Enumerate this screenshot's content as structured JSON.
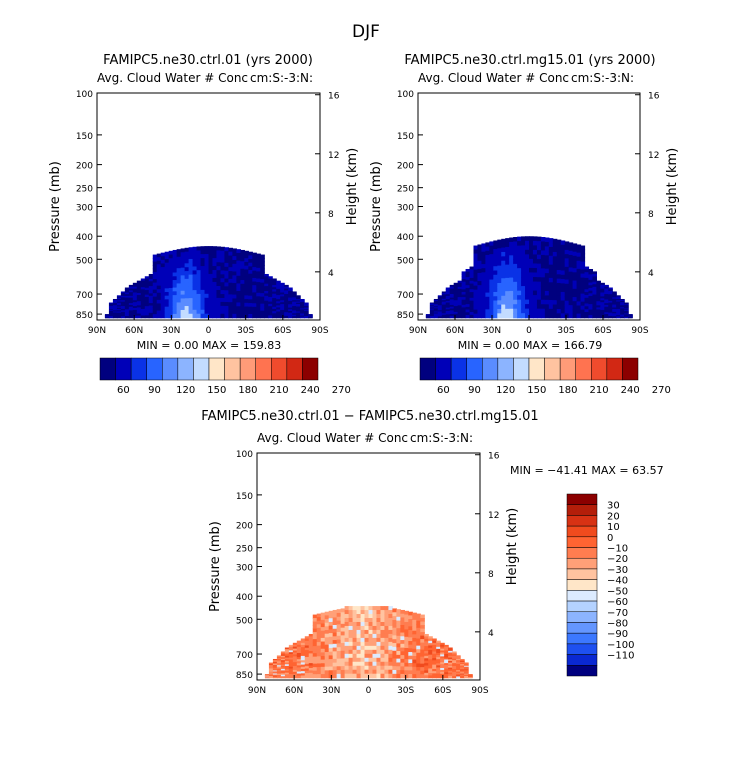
{
  "page_title": "DJF",
  "chart_data": [
    {
      "type": "heatmap",
      "title": "FAMIPC5.ne30.ctrl.01 (yrs 2000)",
      "subtitle": "Avg. Cloud Water # Conc",
      "units_label": "cm:S:-3:N:",
      "ylabel": "Pressure (mb)",
      "y2label": "Height (km)",
      "x_ticks": [
        "90N",
        "60N",
        "30N",
        "0",
        "30S",
        "60S",
        "90S"
      ],
      "y_ticks": [
        "100",
        "150",
        "200",
        "250",
        "300",
        "400",
        "500",
        "700",
        "850"
      ],
      "y2_ticks": [
        "16",
        "12",
        "8",
        "4"
      ],
      "stats": "MIN =    0.00   MAX = 159.83",
      "colorbar": {
        "labels": [
          "60",
          "90",
          "120",
          "150",
          "180",
          "210",
          "240",
          "270"
        ],
        "colors": [
          "#00007f",
          "#0000b8",
          "#0a32e6",
          "#2864ff",
          "#5a8cff",
          "#8cb4ff",
          "#c3dcff",
          "#ffe6c8",
          "#ffc3a0",
          "#ff9b78",
          "#ff7350",
          "#f04b2d",
          "#d22814",
          "#8c0000"
        ]
      }
    },
    {
      "type": "heatmap",
      "title": "FAMIPC5.ne30.ctrl.mg15.01 (yrs 2000)",
      "subtitle": "Avg. Cloud Water # Conc",
      "units_label": "cm:S:-3:N:",
      "ylabel": "Pressure (mb)",
      "y2label": "Height (km)",
      "x_ticks": [
        "90N",
        "60N",
        "30N",
        "0",
        "30S",
        "60S",
        "90S"
      ],
      "y_ticks": [
        "100",
        "150",
        "200",
        "250",
        "300",
        "400",
        "500",
        "700",
        "850"
      ],
      "y2_ticks": [
        "16",
        "12",
        "8",
        "4"
      ],
      "stats": "MIN =    0.00   MAX = 166.79",
      "colorbar": {
        "labels": [
          "60",
          "90",
          "120",
          "150",
          "180",
          "210",
          "240",
          "270"
        ],
        "colors": [
          "#00007f",
          "#0000b8",
          "#0a32e6",
          "#2864ff",
          "#5a8cff",
          "#8cb4ff",
          "#c3dcff",
          "#ffe6c8",
          "#ffc3a0",
          "#ff9b78",
          "#ff7350",
          "#f04b2d",
          "#d22814",
          "#8c0000"
        ]
      }
    },
    {
      "type": "heatmap",
      "title": "FAMIPC5.ne30.ctrl.01 − FAMIPC5.ne30.ctrl.mg15.01",
      "subtitle": "Avg. Cloud Water # Conc",
      "units_label": "cm:S:-3:N:",
      "ylabel": "Pressure (mb)",
      "y2label": "Height (km)",
      "x_ticks": [
        "90N",
        "60N",
        "30N",
        "0",
        "30S",
        "60S",
        "90S"
      ],
      "y_ticks": [
        "100",
        "150",
        "200",
        "250",
        "300",
        "400",
        "500",
        "700",
        "850"
      ],
      "y2_ticks": [
        "16",
        "12",
        "8",
        "4"
      ],
      "stats": "MIN =  −41.41   MAX =   63.57",
      "colorbar": {
        "labels": [
          "30",
          "20",
          "10",
          "0",
          "−10",
          "−20",
          "−30",
          "−40",
          "−50",
          "−60",
          "−70",
          "−80",
          "−90",
          "−100",
          "−110"
        ],
        "colors": [
          "#8c0000",
          "#b41e0a",
          "#d73214",
          "#f04b1e",
          "#ff6432",
          "#ff7d50",
          "#ffa078",
          "#ffc3a0",
          "#ffe6c8",
          "#dcebff",
          "#b4d2ff",
          "#8cb4ff",
          "#6496ff",
          "#3c78ff",
          "#1e50f0",
          "#0a28d2",
          "#00007f"
        ]
      }
    }
  ]
}
